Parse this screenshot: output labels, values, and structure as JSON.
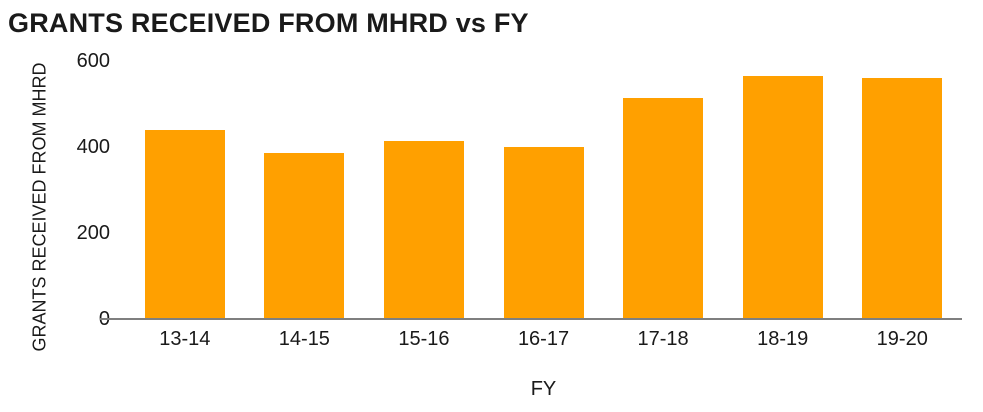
{
  "chart_data": {
    "type": "bar",
    "title": "GRANTS RECEIVED FROM MHRD vs FY",
    "xlabel": "FY",
    "ylabel": "GRANTS RECEIVED FROM MHRD",
    "categories": [
      "13-14",
      "14-15",
      "15-16",
      "16-17",
      "17-18",
      "18-19",
      "19-20"
    ],
    "values": [
      440,
      385,
      415,
      400,
      515,
      565,
      560
    ],
    "yticks": [
      0,
      200,
      400,
      600
    ],
    "ylim": [
      0,
      600
    ],
    "legend": false,
    "grid": false,
    "bar_color": "#FFA000",
    "axis_line_color": "#7F7F7F",
    "text_color": "#1A1A1A"
  }
}
